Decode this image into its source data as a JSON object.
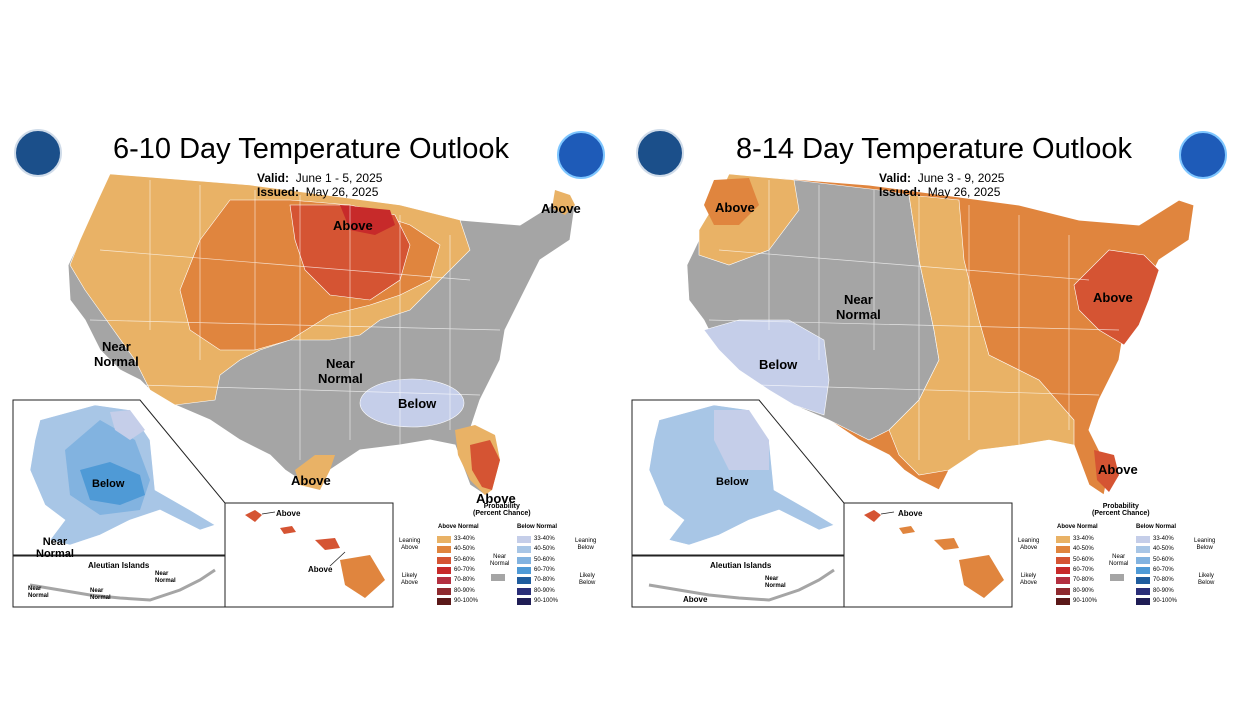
{
  "colors": {
    "a1": "#e9b266",
    "a2": "#e0853e",
    "a3": "#d55433",
    "a4": "#c72a2a",
    "a5": "#b33040",
    "a6": "#8f2a2f",
    "a7": "#5a1818",
    "b1": "#c5cee9",
    "b2": "#a8c6e6",
    "b3": "#82b3e0",
    "b4": "#4f9ad6",
    "b5": "#1f5c9d",
    "b6": "#2a2e78",
    "b7": "#1f1d55",
    "normal": "#a5a5a5",
    "border": "#ffffff",
    "outline": "#222222"
  },
  "left": {
    "title": "6-10 Day Temperature Outlook",
    "valid_label": "Valid:",
    "valid_value": "June 1 - 5, 2025",
    "issued_label": "Issued:",
    "issued_value": "May 26, 2025",
    "labels": {
      "above_n": "Above",
      "above_ne": "Above",
      "near_normal_w": "Near\nNormal",
      "near_normal_c": "Near\nNormal",
      "below": "Below",
      "above_tx": "Above",
      "above_fl": "Above",
      "ak_below": "Below",
      "ak_near": "Near\nNormal",
      "hi_above_1": "Above",
      "hi_above_2": "Above",
      "aleut_title": "Aleutian Islands",
      "aleut_near_1": "Near\nNormal",
      "aleut_near_2": "Near\nNormal",
      "aleut_near_3": "Near\nNormal"
    },
    "legend": {
      "probability": "Probability\n(Percent Chance)",
      "above_normal": "Above Normal",
      "below_normal": "Below Normal",
      "leaning_above": "Leaning\nAbove",
      "likely_above": "Likely\nAbove",
      "leaning_below": "Leaning\nBelow",
      "likely_below": "Likely\nBelow",
      "near_normal": "Near\nNormal",
      "ranges": [
        "33-40%",
        "40-50%",
        "50-60%",
        "60-70%",
        "70-80%",
        "80-90%",
        "90-100%"
      ]
    }
  },
  "right": {
    "title": "8-14 Day Temperature Outlook",
    "valid_label": "Valid:",
    "valid_value": "June 3 - 9, 2025",
    "issued_label": "Issued:",
    "issued_value": "May 26, 2025",
    "labels": {
      "above_nw": "Above",
      "near_normal": "Near\nNormal",
      "below": "Below",
      "above_ne": "Above",
      "above_fl": "Above",
      "ak_below": "Below",
      "hi_above": "Above",
      "aleut_title": "Aleutian Islands",
      "aleut_near": "Near\nNormal",
      "aleut_above": "Above"
    },
    "legend": {
      "probability": "Probability\n(Percent Chance)",
      "above_normal": "Above Normal",
      "below_normal": "Below Normal",
      "leaning_above": "Leaning\nAbove",
      "likely_above": "Likely\nAbove",
      "leaning_below": "Leaning\nBelow",
      "likely_below": "Likely\nBelow",
      "near_normal": "Near\nNormal",
      "ranges": [
        "33-40%",
        "40-50%",
        "50-60%",
        "60-70%",
        "70-80%",
        "80-90%",
        "90-100%"
      ]
    }
  }
}
